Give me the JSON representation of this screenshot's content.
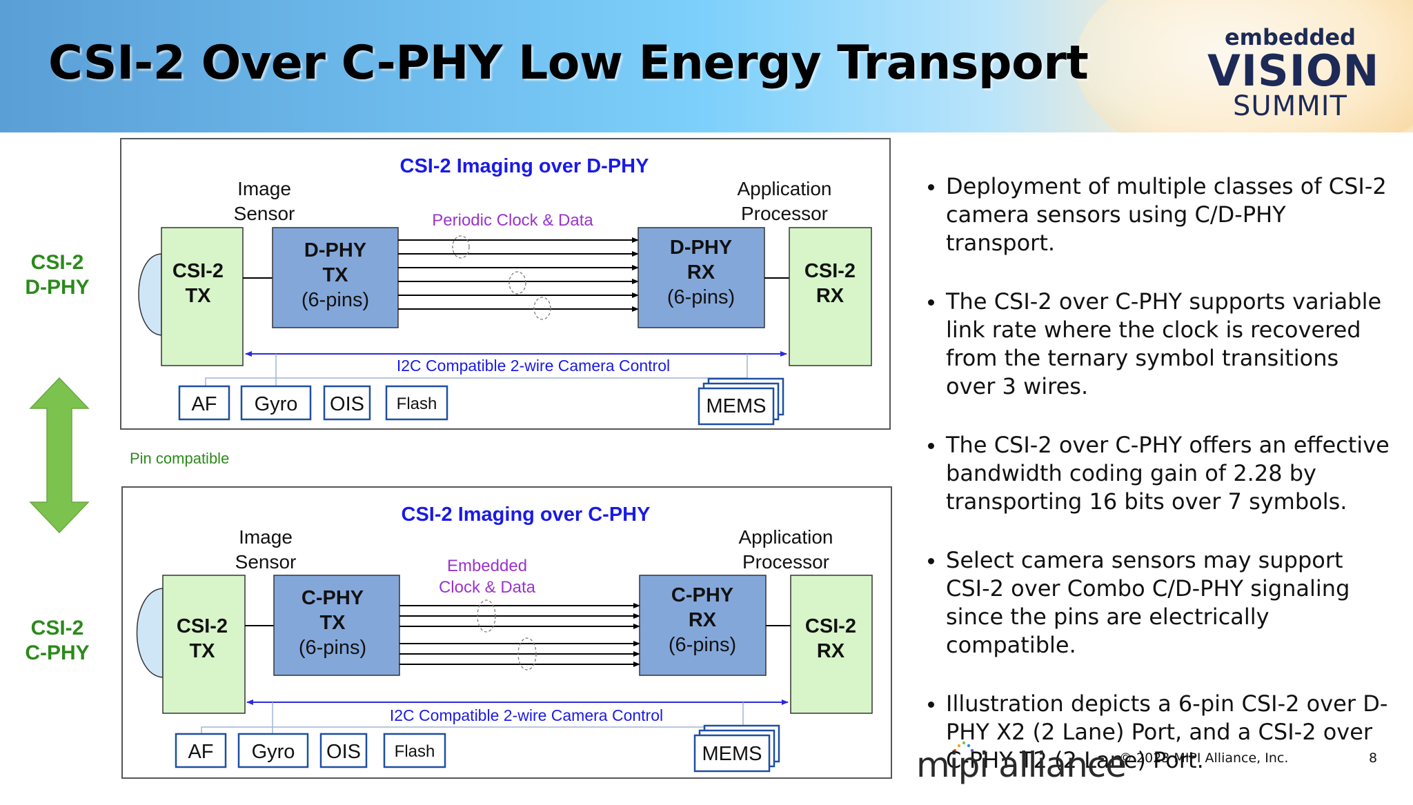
{
  "title": "CSI-2 Over C-PHY Low Energy Transport",
  "event_logo": {
    "line1": "embedded",
    "line2": "VISION",
    "line3": "SUMMIT"
  },
  "colors": {
    "green_box": "#d7f5c8",
    "blue_box": "#84a7da",
    "title_blue": "#1a1ae6",
    "purple_label": "#9a33cc",
    "side_green": "#2b8a1b",
    "arrow_green": "#7cc24e",
    "icon_blue": "#1c4ea3"
  },
  "side": {
    "top_label": "CSI-2\nD-PHY",
    "bottom_label": "CSI-2\nC-PHY",
    "pin_label": "Pin compatible"
  },
  "panels": [
    {
      "title": "CSI-2 Imaging over D-PHY",
      "sensor_label": "Image\nSensor",
      "processor_label": "Application\nProcessor",
      "link_label": "Periodic Clock & Data",
      "tx_left": "CSI-2\nTX",
      "tx_phy": "D-PHY\nTX\n(6-pins)",
      "rx_phy": "D-PHY\nRX\n(6-pins)",
      "rx_right": "CSI-2\nRX",
      "control_label": "I2C Compatible 2-wire Camera Control",
      "peripherals": [
        "AF",
        "Gyro",
        "OIS",
        "Flash"
      ],
      "mems": "MEMS"
    },
    {
      "title": "CSI-2 Imaging over C-PHY",
      "sensor_label": "Image\nSensor",
      "processor_label": "Application\nProcessor",
      "link_label": "Embedded\nClock & Data",
      "tx_left": "CSI-2\nTX",
      "tx_phy": "C-PHY\nTX\n(6-pins)",
      "rx_phy": "C-PHY\nRX\n(6-pins)",
      "rx_right": "CSI-2\nRX",
      "control_label": "I2C Compatible 2-wire Camera Control",
      "peripherals": [
        "AF",
        "Gyro",
        "OIS",
        "Flash"
      ],
      "mems": "MEMS"
    }
  ],
  "bullets": [
    "Deployment of multiple classes of CSI-2 camera sensors using C/D-PHY transport.",
    "The CSI-2 over C-PHY supports variable link rate where the clock is recovered from the ternary symbol transitions over 3 wires.",
    "The CSI-2 over C-PHY offers an effective bandwidth coding gain of 2.28 by transporting 16 bits over 7 symbols.",
    "Select camera sensors may support CSI-2 over Combo C/D-PHY signaling since the pins are electrically compatible.",
    "Illustration depicts a 6-pin CSI-2 over D-PHY X2 (2 Lane) Port, and a CSI-2 over C-PHY T2 (2 Lane) Port."
  ],
  "footer": {
    "logo": "mipi alliance",
    "copyright": "© 2023 MIPI Alliance, Inc.",
    "page": "8"
  }
}
